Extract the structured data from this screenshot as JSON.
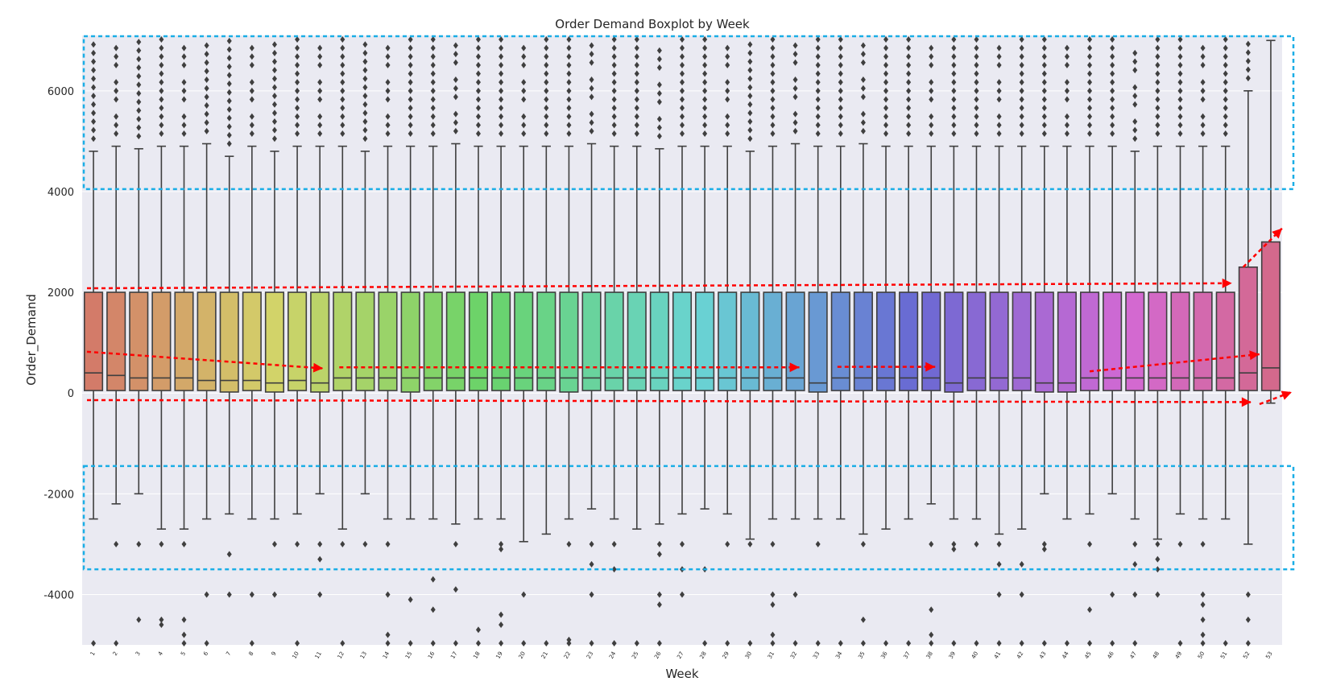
{
  "chart_data": {
    "type": "boxplot",
    "title": "Order Demand Boxplot by Week",
    "xlabel": "Week",
    "ylabel": "Order_Demand",
    "ylim": [
      -5000,
      7100
    ],
    "yticks": [
      -4000,
      -2000,
      0,
      2000,
      4000,
      6000
    ],
    "grid": true,
    "categories": [
      "1",
      "2",
      "3",
      "4",
      "5",
      "6",
      "7",
      "8",
      "9",
      "10",
      "11",
      "12",
      "13",
      "14",
      "15",
      "16",
      "17",
      "18",
      "19",
      "20",
      "21",
      "22",
      "23",
      "24",
      "25",
      "26",
      "27",
      "28",
      "29",
      "30",
      "31",
      "32",
      "33",
      "34",
      "35",
      "36",
      "37",
      "38",
      "39",
      "40",
      "41",
      "42",
      "43",
      "44",
      "45",
      "46",
      "47",
      "48",
      "49",
      "50",
      "51",
      "52",
      "53"
    ],
    "q1": [
      50,
      50,
      50,
      50,
      50,
      50,
      20,
      50,
      20,
      50,
      20,
      50,
      50,
      50,
      20,
      50,
      50,
      50,
      50,
      50,
      50,
      20,
      50,
      50,
      50,
      50,
      50,
      50,
      50,
      50,
      50,
      50,
      20,
      50,
      50,
      50,
      50,
      50,
      20,
      50,
      50,
      50,
      20,
      20,
      50,
      50,
      50,
      50,
      50,
      50,
      50,
      50,
      50
    ],
    "median": [
      400,
      350,
      300,
      300,
      300,
      250,
      250,
      250,
      200,
      250,
      200,
      300,
      300,
      300,
      300,
      300,
      300,
      300,
      300,
      300,
      300,
      300,
      300,
      300,
      300,
      300,
      300,
      300,
      300,
      300,
      300,
      300,
      200,
      300,
      300,
      300,
      300,
      300,
      200,
      300,
      300,
      300,
      200,
      200,
      300,
      300,
      300,
      300,
      300,
      300,
      300,
      400,
      500
    ],
    "q3": [
      2000,
      2000,
      2000,
      2000,
      2000,
      2000,
      2000,
      2000,
      2000,
      2000,
      2000,
      2000,
      2000,
      2000,
      2000,
      2000,
      2000,
      2000,
      2000,
      2000,
      2000,
      2000,
      2000,
      2000,
      2000,
      2000,
      2000,
      2000,
      2000,
      2000,
      2000,
      2000,
      2000,
      2000,
      2000,
      2000,
      2000,
      2000,
      2000,
      2000,
      2000,
      2000,
      2000,
      2000,
      2000,
      2000,
      2000,
      2000,
      2000,
      2000,
      2000,
      2500,
      3000
    ],
    "whisker_high": [
      4800,
      4900,
      4850,
      4900,
      4900,
      4950,
      4700,
      4900,
      4800,
      4900,
      4900,
      4900,
      4800,
      4900,
      4900,
      4900,
      4950,
      4900,
      4900,
      4900,
      4900,
      4900,
      4950,
      4900,
      4900,
      4850,
      4900,
      4900,
      4900,
      4800,
      4900,
      4950,
      4900,
      4900,
      4950,
      4900,
      4900,
      4900,
      4900,
      4900,
      4900,
      4900,
      4900,
      4900,
      4900,
      4900,
      4800,
      4900,
      4900,
      4900,
      4900,
      6000,
      7000
    ],
    "whisker_low": [
      -2500,
      -2200,
      -2000,
      -2700,
      -2700,
      -2500,
      -2400,
      -2500,
      -2500,
      -2400,
      -2000,
      -2700,
      -2000,
      -2500,
      -2500,
      -2500,
      -2600,
      -2500,
      -2500,
      -2950,
      -2800,
      -2500,
      -2300,
      -2500,
      -2700,
      -2600,
      -2400,
      -2300,
      -2400,
      -2900,
      -2500,
      -2500,
      -2500,
      -2500,
      -2800,
      -2700,
      -2500,
      -2200,
      -2500,
      -2500,
      -2800,
      -2700,
      -2000,
      -2500,
      -2400,
      -2000,
      -2500,
      -2900,
      -2400,
      -2500,
      -2500,
      -3000,
      -200
    ],
    "outliers_low": [
      [
        -5000
      ],
      [
        -3000,
        -5000
      ],
      [
        -3000,
        -4500
      ],
      [
        -3000,
        -4500,
        -4600
      ],
      [
        -3000,
        -4500,
        -4800,
        -5000
      ],
      [
        -4000,
        -5000
      ],
      [
        -3200,
        -4000
      ],
      [
        -4000,
        -5000
      ],
      [
        -3000,
        -4000
      ],
      [
        -3000,
        -5000
      ],
      [
        -3000,
        -3300,
        -4000
      ],
      [
        -3000,
        -5000
      ],
      [
        -3000
      ],
      [
        -3000,
        -4000,
        -4800,
        -5000
      ],
      [
        -4100,
        -5000
      ],
      [
        -3700,
        -4300,
        -5000
      ],
      [
        -3000,
        -3900,
        -5000
      ],
      [
        -4700,
        -5000
      ],
      [
        -3000,
        -3100,
        -4400,
        -4600,
        -5000
      ],
      [
        -4000,
        -5000
      ],
      [
        -5000
      ],
      [
        -3000,
        -4900,
        -5000
      ],
      [
        -3000,
        -3400,
        -4000,
        -5000
      ],
      [
        -3000,
        -3500,
        -5000
      ],
      [
        -5000
      ],
      [
        -3000,
        -3200,
        -4000,
        -4200,
        -5000
      ],
      [
        -3000,
        -3500,
        -4000
      ],
      [
        -3500,
        -5000
      ],
      [
        -3000,
        -5000
      ],
      [
        -3000,
        -5000
      ],
      [
        -3000,
        -4000,
        -4200,
        -4800,
        -5000
      ],
      [
        -4000,
        -5000
      ],
      [
        -3000,
        -5000
      ],
      [
        -5000
      ],
      [
        -3000,
        -4500,
        -5000
      ],
      [
        -5000
      ],
      [
        -5000
      ],
      [
        -3000,
        -4300,
        -4800,
        -5000
      ],
      [
        -3000,
        -3100,
        -5000
      ],
      [
        -3000,
        -5000
      ],
      [
        -3000,
        -3400,
        -4000,
        -5000
      ],
      [
        -3400,
        -4000,
        -5000
      ],
      [
        -3000,
        -3100,
        -5000
      ],
      [
        -5000
      ],
      [
        -3000,
        -4300,
        -5000
      ],
      [
        -4000,
        -5000
      ],
      [
        -3000,
        -3400,
        -4000,
        -5000
      ],
      [
        -3000,
        -3300,
        -3500,
        -4000
      ],
      [
        -3000,
        -5000
      ],
      [
        -3000,
        -4000,
        -4200,
        -4500,
        -4800,
        -5000
      ],
      [
        -5000
      ],
      [
        -4000,
        -4500,
        -5000
      ],
      []
    ]
  },
  "annotations": {
    "blue_color": "#1aaee6",
    "red_color": "#ff0000"
  }
}
